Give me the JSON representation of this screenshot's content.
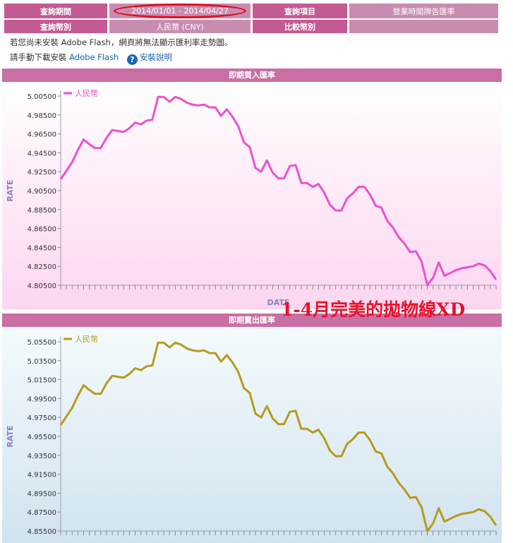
{
  "query": {
    "period_label": "查詢期間",
    "period_value": "2014/01/01 - 2014/04/27",
    "item_label": "查詢項目",
    "item_value": "營業時間牌告匯率",
    "currency_label": "查詢幣別",
    "currency_value": "人民幣 (CNY)",
    "compare_label": "比較幣別",
    "compare_value": ""
  },
  "notice": {
    "line1": "若您尚未安裝 Adobe Flash，網頁將無法顯示匯利率走勢圖。",
    "line2_prefix": "請手動下載安裝",
    "line2_link": "Adobe Flash",
    "help_icon_glyph": "?",
    "help_link": "安裝說明"
  },
  "annotation": "1-4月完美的拋物線XD",
  "chart_data": [
    {
      "type": "line",
      "title": "即期買入匯率",
      "xlabel": "DATE",
      "ylabel": "RATE",
      "ylim": [
        4.805,
        5.005
      ],
      "yticks": [
        "5.00500",
        "4.98500",
        "4.96500",
        "4.94500",
        "4.92500",
        "4.90500",
        "4.88500",
        "4.86500",
        "4.84500",
        "4.82500",
        "4.80500"
      ],
      "grid": false,
      "legend": "top-left",
      "background": [
        "#ffffff",
        "#fcd6f0"
      ],
      "series": [
        {
          "name": "人民幣",
          "color": "#ee4fd2",
          "values": [
            4.917,
            4.926,
            4.935,
            4.948,
            4.959,
            4.954,
            4.95,
            4.95,
            4.961,
            4.969,
            4.968,
            4.967,
            4.971,
            4.977,
            4.975,
            4.979,
            4.98,
            5.004,
            5.004,
            4.999,
            5.004,
            5.002,
            4.998,
            4.996,
            4.995,
            4.996,
            4.993,
            4.993,
            4.984,
            4.991,
            4.983,
            4.973,
            4.956,
            4.951,
            4.929,
            4.925,
            4.937,
            4.924,
            4.918,
            4.918,
            4.931,
            4.932,
            4.913,
            4.913,
            4.909,
            4.912,
            4.903,
            4.89,
            4.884,
            4.884,
            4.897,
            4.902,
            4.909,
            4.909,
            4.901,
            4.889,
            4.887,
            4.873,
            4.866,
            4.856,
            4.849,
            4.84,
            4.841,
            4.83,
            4.805,
            4.813,
            4.829,
            4.815,
            4.818,
            4.821,
            4.823,
            4.824,
            4.825,
            4.828,
            4.826,
            4.82,
            4.811
          ]
        }
      ]
    },
    {
      "type": "line",
      "title": "即期賣出匯率",
      "xlabel": "",
      "ylabel": "RATE",
      "ylim": [
        4.855,
        5.055
      ],
      "yticks": [
        "5.05500",
        "5.03500",
        "5.01500",
        "4.99500",
        "4.97500",
        "4.95500",
        "4.93500",
        "4.91500",
        "4.89500",
        "4.87500",
        "4.85500"
      ],
      "grid": false,
      "legend": "top-left",
      "background": [
        "#f4fbfd",
        "#d1e3ef"
      ],
      "series": [
        {
          "name": "人民幣",
          "color": "#b89a1e",
          "values": [
            4.967,
            4.976,
            4.985,
            4.998,
            5.009,
            5.004,
            5.0,
            5.0,
            5.011,
            5.019,
            5.018,
            5.017,
            5.021,
            5.027,
            5.025,
            5.029,
            5.03,
            5.054,
            5.054,
            5.049,
            5.054,
            5.052,
            5.048,
            5.046,
            5.045,
            5.046,
            5.043,
            5.043,
            5.034,
            5.041,
            5.033,
            5.023,
            5.006,
            5.001,
            4.979,
            4.975,
            4.987,
            4.974,
            4.968,
            4.968,
            4.981,
            4.982,
            4.963,
            4.963,
            4.959,
            4.962,
            4.953,
            4.94,
            4.934,
            4.934,
            4.947,
            4.952,
            4.959,
            4.959,
            4.951,
            4.939,
            4.937,
            4.923,
            4.916,
            4.906,
            4.899,
            4.89,
            4.891,
            4.88,
            4.855,
            4.863,
            4.879,
            4.865,
            4.868,
            4.871,
            4.873,
            4.874,
            4.875,
            4.878,
            4.876,
            4.87,
            4.861
          ]
        }
      ]
    }
  ]
}
